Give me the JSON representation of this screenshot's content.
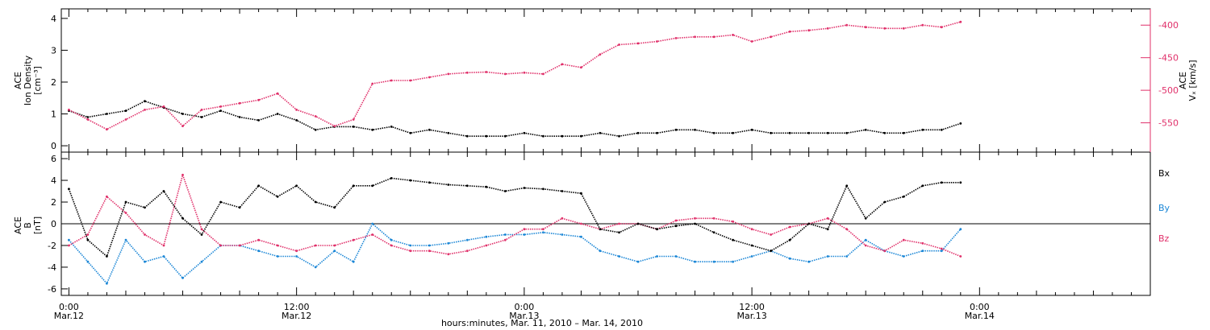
{
  "colors": {
    "black": "#000000",
    "red": "#e0306a",
    "blue": "#1a86d6"
  },
  "xaxis": {
    "range_hours": [
      -0.4,
      57.0
    ],
    "major": [
      {
        "h": 0,
        "time": "0:00",
        "date": "Mar.12"
      },
      {
        "h": 12,
        "time": "12:00",
        "date": "Mar.12"
      },
      {
        "h": 24,
        "time": "0:00",
        "date": "Mar.13"
      },
      {
        "h": 36,
        "time": "12:00",
        "date": "Mar.13"
      },
      {
        "h": 48,
        "time": "0:00",
        "date": "Mar.14"
      }
    ],
    "caption": "hours:minutes, Mar. 11, 2010 – Mar. 14, 2010"
  },
  "chart_data": [
    {
      "type": "scatter",
      "panel": "top",
      "ylabel_lines": [
        "ACE",
        "Ion Density",
        "[cm⁻³]"
      ],
      "ylim": [
        -0.2,
        4.3
      ],
      "yticks": [
        0,
        1,
        2,
        3,
        4
      ],
      "right_axis": {
        "ylabel_lines": [
          "ACE",
          "Vₓ [km/s]"
        ],
        "ylim": [
          -595,
          -375
        ],
        "yticks": [
          -400,
          -450,
          -500,
          -550
        ],
        "color": "#e0306a"
      },
      "series": [
        {
          "name_hidden": "density",
          "color": "#000000",
          "axis": "left",
          "x": [
            0,
            1,
            2,
            3,
            4,
            5,
            6,
            7,
            8,
            9,
            10,
            11,
            12,
            13,
            14,
            15,
            16,
            17,
            18,
            19,
            20,
            21,
            22,
            23,
            24,
            25,
            26,
            27,
            28,
            29,
            30,
            31,
            32,
            33,
            34,
            35,
            36,
            37,
            38,
            39,
            40,
            41,
            42,
            43,
            44,
            45,
            46,
            47
          ],
          "y": [
            1.1,
            0.9,
            1.0,
            1.1,
            1.4,
            1.2,
            1.0,
            0.9,
            1.1,
            0.9,
            0.8,
            1.0,
            0.8,
            0.5,
            0.6,
            0.6,
            0.5,
            0.6,
            0.4,
            0.5,
            0.4,
            0.3,
            0.3,
            0.3,
            0.4,
            0.3,
            0.3,
            0.3,
            0.4,
            0.3,
            0.4,
            0.4,
            0.5,
            0.5,
            0.4,
            0.4,
            0.5,
            0.4,
            0.4,
            0.4,
            0.4,
            0.4,
            0.5,
            0.4,
            0.4,
            0.5,
            0.5,
            0.7
          ]
        },
        {
          "name_hidden": "vx",
          "color": "#e0306a",
          "axis": "right",
          "x": [
            0,
            1,
            2,
            3,
            4,
            5,
            6,
            7,
            8,
            9,
            10,
            11,
            12,
            13,
            14,
            15,
            16,
            17,
            18,
            19,
            20,
            21,
            22,
            23,
            24,
            25,
            26,
            27,
            28,
            29,
            30,
            31,
            32,
            33,
            34,
            35,
            36,
            37,
            38,
            39,
            40,
            41,
            42,
            43,
            44,
            45,
            46,
            47
          ],
          "y": [
            -530,
            -545,
            -560,
            -545,
            -530,
            -525,
            -555,
            -530,
            -525,
            -520,
            -515,
            -505,
            -530,
            -540,
            -555,
            -545,
            -490,
            -485,
            -485,
            -480,
            -475,
            -473,
            -472,
            -475,
            -473,
            -475,
            -460,
            -465,
            -445,
            -430,
            -428,
            -425,
            -420,
            -418,
            -418,
            -415,
            -425,
            -418,
            -410,
            -408,
            -405,
            -400,
            -403,
            -405,
            -405,
            -400,
            -403,
            -395
          ]
        }
      ]
    },
    {
      "type": "scatter",
      "panel": "bottom",
      "ylabel_lines": [
        "ACE",
        "B",
        "[nT]"
      ],
      "ylim": [
        -6.6,
        6.6
      ],
      "yticks": [
        6,
        4,
        2,
        0,
        -2,
        -4,
        -6
      ],
      "zero_line": true,
      "legend": [
        {
          "label": "Bx",
          "color": "#000000"
        },
        {
          "label": "By",
          "color": "#1a86d6"
        },
        {
          "label": "Bz",
          "color": "#e0306a"
        }
      ],
      "series": [
        {
          "name": "Bx",
          "color": "#000000",
          "x": [
            0,
            1,
            2,
            3,
            4,
            5,
            6,
            7,
            8,
            9,
            10,
            11,
            12,
            13,
            14,
            15,
            16,
            17,
            18,
            19,
            20,
            21,
            22,
            23,
            24,
            25,
            26,
            27,
            28,
            29,
            30,
            31,
            32,
            33,
            34,
            35,
            36,
            37,
            38,
            39,
            40,
            41,
            42,
            43,
            44,
            45,
            46,
            47
          ],
          "y": [
            3.2,
            -1.5,
            -3.0,
            2.0,
            1.5,
            3.0,
            0.5,
            -1.0,
            2.0,
            1.5,
            3.5,
            2.5,
            3.5,
            2.0,
            1.5,
            3.5,
            3.5,
            4.2,
            4.0,
            3.8,
            3.6,
            3.5,
            3.4,
            3.0,
            3.3,
            3.2,
            3.0,
            2.8,
            -0.5,
            -0.8,
            0.0,
            -0.5,
            -0.2,
            0.0,
            -0.8,
            -1.5,
            -2.0,
            -2.5,
            -1.5,
            0.0,
            -0.5,
            3.5,
            0.5,
            2.0,
            2.5,
            3.5,
            3.8,
            3.8
          ]
        },
        {
          "name": "By",
          "color": "#1a86d6",
          "x": [
            0,
            1,
            2,
            3,
            4,
            5,
            6,
            7,
            8,
            9,
            10,
            11,
            12,
            13,
            14,
            15,
            16,
            17,
            18,
            19,
            20,
            21,
            22,
            23,
            24,
            25,
            26,
            27,
            28,
            29,
            30,
            31,
            32,
            33,
            34,
            35,
            36,
            37,
            38,
            39,
            40,
            41,
            42,
            43,
            44,
            45,
            46,
            47
          ],
          "y": [
            -1.5,
            -3.5,
            -5.5,
            -1.5,
            -3.5,
            -3.0,
            -5.0,
            -3.5,
            -2.0,
            -2.0,
            -2.5,
            -3.0,
            -3.0,
            -4.0,
            -2.5,
            -3.5,
            0.0,
            -1.5,
            -2.0,
            -2.0,
            -1.8,
            -1.5,
            -1.2,
            -1.0,
            -1.0,
            -0.8,
            -1.0,
            -1.2,
            -2.5,
            -3.0,
            -3.5,
            -3.0,
            -3.0,
            -3.5,
            -3.5,
            -3.5,
            -3.0,
            -2.5,
            -3.2,
            -3.5,
            -3.0,
            -3.0,
            -1.5,
            -2.5,
            -3.0,
            -2.5,
            -2.5,
            -0.5
          ]
        },
        {
          "name": "Bz",
          "color": "#e0306a",
          "x": [
            0,
            1,
            2,
            3,
            4,
            5,
            6,
            7,
            8,
            9,
            10,
            11,
            12,
            13,
            14,
            15,
            16,
            17,
            18,
            19,
            20,
            21,
            22,
            23,
            24,
            25,
            26,
            27,
            28,
            29,
            30,
            31,
            32,
            33,
            34,
            35,
            36,
            37,
            38,
            39,
            40,
            41,
            42,
            43,
            44,
            45,
            46,
            47
          ],
          "y": [
            -2.0,
            -1.0,
            2.5,
            1.0,
            -1.0,
            -2.0,
            4.5,
            -0.5,
            -2.0,
            -2.0,
            -1.5,
            -2.0,
            -2.5,
            -2.0,
            -2.0,
            -1.5,
            -1.0,
            -2.0,
            -2.5,
            -2.5,
            -2.8,
            -2.5,
            -2.0,
            -1.5,
            -0.5,
            -0.5,
            0.5,
            0.0,
            -0.5,
            0.0,
            0.0,
            -0.5,
            0.3,
            0.5,
            0.5,
            0.2,
            -0.5,
            -1.0,
            -0.3,
            0.0,
            0.5,
            -0.5,
            -2.0,
            -2.5,
            -1.5,
            -1.8,
            -2.3,
            -3.0
          ]
        }
      ]
    }
  ]
}
